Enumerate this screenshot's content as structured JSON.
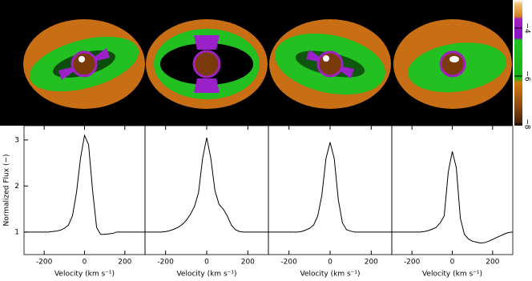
{
  "chart_data": [
    {
      "type": "line",
      "ylabel": "Normalized Flux  (−)",
      "xlabel": "Velocity  (km s⁻¹)",
      "x": [
        -300,
        -280,
        -260,
        -240,
        -220,
        -200,
        -180,
        -160,
        -140,
        -120,
        -100,
        -80,
        -60,
        -40,
        -20,
        0,
        20,
        40,
        60,
        80,
        100,
        120,
        140,
        160,
        180,
        200,
        220,
        240,
        260,
        280,
        300
      ],
      "values": [
        1,
        1,
        1,
        1,
        1,
        1,
        1,
        1.01,
        1.02,
        1.04,
        1.08,
        1.15,
        1.35,
        1.85,
        2.6,
        3.1,
        2.9,
        1.9,
        1.1,
        0.95,
        0.95,
        0.96,
        0.97,
        1,
        1,
        1,
        1,
        1,
        1,
        1,
        1
      ],
      "xlim": [
        -300,
        300
      ],
      "xticks": [
        -200,
        0,
        200
      ],
      "ylim": [
        0.51,
        3.31
      ],
      "yticks": [
        1,
        2,
        3
      ],
      "color": "#000000"
    },
    {
      "type": "line",
      "xlabel": "Velocity  (km s⁻¹)",
      "x": [
        -300,
        -280,
        -260,
        -240,
        -220,
        -200,
        -180,
        -160,
        -140,
        -120,
        -100,
        -80,
        -60,
        -40,
        -20,
        0,
        20,
        40,
        60,
        80,
        100,
        120,
        140,
        160,
        180,
        200,
        220,
        240,
        260,
        280,
        300
      ],
      "values": [
        1,
        1,
        1,
        1,
        1,
        1.01,
        1.03,
        1.06,
        1.1,
        1.16,
        1.25,
        1.38,
        1.55,
        1.85,
        2.6,
        3.05,
        2.6,
        1.9,
        1.6,
        1.5,
        1.35,
        1.15,
        1.05,
        1.01,
        1,
        1,
        1,
        1,
        1,
        1,
        1
      ],
      "xlim": [
        -300,
        300
      ],
      "xticks": [
        -200,
        0,
        200
      ],
      "ylim": [
        0.51,
        3.31
      ],
      "color": "#000000"
    },
    {
      "type": "line",
      "xlabel": "Velocity  (km s⁻¹)",
      "x": [
        -300,
        -280,
        -260,
        -240,
        -220,
        -200,
        -180,
        -160,
        -140,
        -120,
        -100,
        -80,
        -60,
        -40,
        -20,
        0,
        20,
        40,
        60,
        80,
        100,
        120,
        140,
        160,
        180,
        200,
        220,
        240,
        260,
        280,
        300
      ],
      "values": [
        1,
        1,
        1,
        1,
        1,
        1,
        1,
        1,
        1.01,
        1.04,
        1.08,
        1.15,
        1.35,
        1.8,
        2.6,
        2.95,
        2.6,
        1.7,
        1.2,
        1.05,
        1.02,
        1,
        1,
        1,
        1,
        1,
        1,
        1,
        1,
        1,
        1
      ],
      "xlim": [
        -300,
        300
      ],
      "xticks": [
        -200,
        0,
        200
      ],
      "ylim": [
        0.51,
        3.31
      ],
      "color": "#000000"
    },
    {
      "type": "line",
      "xlabel": "Velocity  (km s⁻¹)",
      "x": [
        -300,
        -280,
        -260,
        -240,
        -220,
        -200,
        -180,
        -160,
        -140,
        -120,
        -100,
        -80,
        -60,
        -40,
        -20,
        0,
        20,
        40,
        60,
        80,
        100,
        120,
        140,
        160,
        180,
        200,
        220,
        240,
        260,
        280,
        300
      ],
      "values": [
        1,
        1,
        1,
        1,
        1,
        1,
        1,
        1,
        1.01,
        1.03,
        1.06,
        1.1,
        1.2,
        1.35,
        2.3,
        2.75,
        2.4,
        1.3,
        0.95,
        0.85,
        0.8,
        0.78,
        0.76,
        0.77,
        0.8,
        0.84,
        0.88,
        0.92,
        0.96,
        0.99,
        1
      ],
      "xlim": [
        -300,
        300
      ],
      "xticks": [
        -200,
        0,
        200
      ],
      "ylim": [
        0.51,
        3.31
      ],
      "color": "#000000"
    },
    {
      "type": "colorbar",
      "ylim": [
        -8.07,
        -2.83
      ],
      "yticks": [
        {
          "value": -4,
          "label": "−4"
        },
        {
          "value": -6,
          "label": "−6"
        },
        {
          "value": -8,
          "label": "−8"
        }
      ]
    }
  ]
}
